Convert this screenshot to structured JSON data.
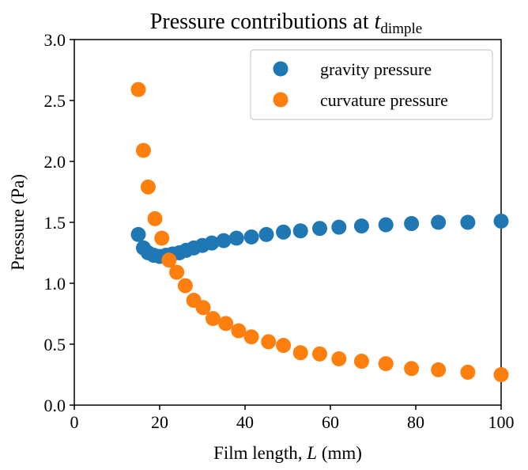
{
  "chart_data": {
    "type": "scatter",
    "title": {
      "main": "Pressure contributions at ",
      "var": "t",
      "sub": "dimple"
    },
    "xlabel": {
      "pre": "Film length, ",
      "var": "L",
      "post": " (mm)"
    },
    "ylabel": "Pressure (Pa)",
    "xlim": [
      0,
      100
    ],
    "ylim": [
      0,
      3.0
    ],
    "xticks": [
      0,
      20,
      40,
      60,
      80,
      100
    ],
    "xtick_labels": [
      "0",
      "20",
      "40",
      "60",
      "80",
      "100"
    ],
    "yticks": [
      0,
      0.5,
      1.0,
      1.5,
      2.0,
      2.5,
      3.0
    ],
    "ytick_labels": [
      "0.0",
      "0.5",
      "1.0",
      "1.5",
      "2.0",
      "2.5",
      "3.0"
    ],
    "grid": false,
    "legend_position": "upper right",
    "series": [
      {
        "name": "gravity pressure",
        "color": "#1f77b4",
        "x": [
          15.0,
          16.2,
          17.3,
          18.6,
          20.0,
          21.5,
          23.0,
          24.6,
          26.2,
          28.0,
          30.0,
          32.2,
          35.0,
          38.0,
          41.5,
          45.0,
          49.0,
          53.0,
          57.5,
          62.0,
          67.3,
          73.0,
          79.0,
          85.3,
          92.2,
          100.0
        ],
        "y": [
          1.4,
          1.29,
          1.25,
          1.23,
          1.22,
          1.23,
          1.24,
          1.25,
          1.27,
          1.29,
          1.31,
          1.33,
          1.35,
          1.37,
          1.38,
          1.4,
          1.42,
          1.43,
          1.45,
          1.46,
          1.47,
          1.48,
          1.49,
          1.5,
          1.5,
          1.51
        ]
      },
      {
        "name": "curvature pressure",
        "color": "#ff7f0e",
        "x": [
          15.0,
          16.2,
          17.3,
          18.9,
          20.5,
          22.2,
          24.0,
          26.0,
          28.0,
          30.2,
          32.5,
          35.5,
          38.5,
          41.5,
          45.5,
          49.0,
          53.0,
          57.5,
          62.0,
          67.3,
          73.0,
          79.0,
          85.3,
          92.2,
          100.0
        ],
        "y": [
          2.59,
          2.09,
          1.79,
          1.53,
          1.37,
          1.19,
          1.09,
          0.98,
          0.86,
          0.8,
          0.71,
          0.67,
          0.61,
          0.56,
          0.52,
          0.49,
          0.43,
          0.42,
          0.38,
          0.36,
          0.34,
          0.3,
          0.29,
          0.27,
          0.25
        ]
      }
    ]
  }
}
